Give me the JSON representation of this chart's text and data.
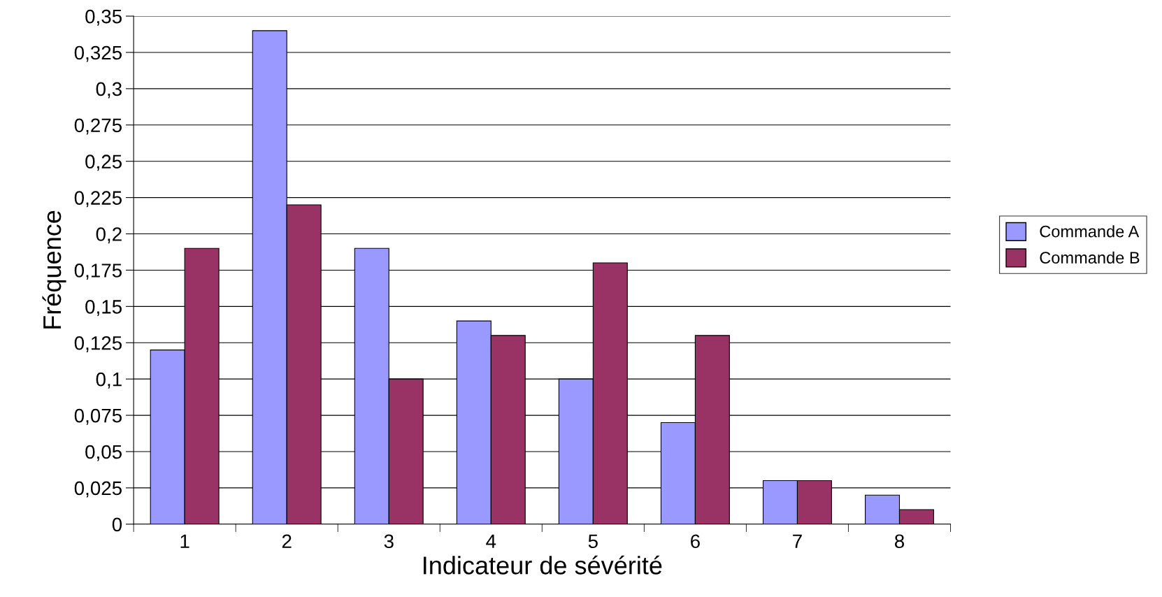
{
  "chart_data": {
    "type": "bar",
    "xlabel": "Indicateur de sévérité",
    "ylabel": "Fréquence",
    "categories": [
      "1",
      "2",
      "3",
      "4",
      "5",
      "6",
      "7",
      "8"
    ],
    "series": [
      {
        "name": "Commande A",
        "color": "#9999ff",
        "values": [
          0.12,
          0.34,
          0.19,
          0.14,
          0.1,
          0.07,
          0.03,
          0.02
        ]
      },
      {
        "name": "Commande B",
        "color": "#993366",
        "values": [
          0.19,
          0.22,
          0.1,
          0.13,
          0.18,
          0.13,
          0.03,
          0.01
        ]
      }
    ],
    "ylim": [
      0,
      0.35
    ],
    "yticks": [
      0,
      {
        "value": 0.025,
        "label": "0,025"
      },
      {
        "value": 0.05,
        "label": "0,05"
      },
      {
        "value": 0.075,
        "label": "0,075"
      },
      {
        "value": 0.1,
        "label": "0,1"
      },
      {
        "value": 0.125,
        "label": "0,125"
      },
      {
        "value": 0.15,
        "label": "0,15"
      },
      {
        "value": 0.175,
        "label": "0,175"
      },
      {
        "value": 0.2,
        "label": "0,2"
      },
      {
        "value": 0.225,
        "label": "0,225"
      },
      {
        "value": 0.25,
        "label": "0,25"
      },
      {
        "value": 0.275,
        "label": "0,275"
      },
      {
        "value": 0.3,
        "label": "0,3"
      },
      {
        "value": 0.325,
        "label": "0,325"
      },
      {
        "value": 0.35,
        "label": "0,35"
      }
    ],
    "grid": "y",
    "legend": "right"
  }
}
